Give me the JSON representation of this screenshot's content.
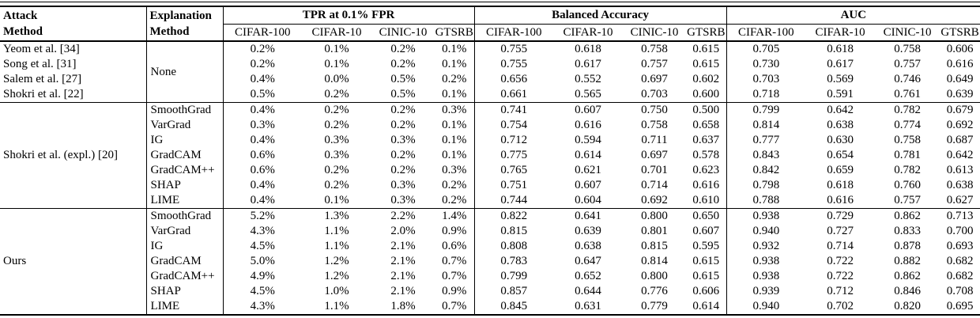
{
  "table": {
    "title_semantic": "Membership inference attack results table",
    "colors": {
      "text": "#000000",
      "rule": "#000000",
      "background": "#ffffff"
    },
    "header": {
      "attack": "Attack\nMethod",
      "explanation": "Explanation\nMethod",
      "groups": [
        "TPR at 0.1% FPR",
        "Balanced Accuracy",
        "AUC"
      ],
      "datasets": [
        "CIFAR-100",
        "CIFAR-10",
        "CINIC-10",
        "GTSRB"
      ]
    },
    "sections": [
      {
        "explanation_span": "None",
        "rows": [
          {
            "attack": "Yeom et al. [34]",
            "tpr": [
              "0.2%",
              "0.1%",
              "0.2%",
              "0.1%"
            ],
            "ba": [
              "0.755",
              "0.618",
              "0.758",
              "0.615"
            ],
            "auc": [
              "0.705",
              "0.618",
              "0.758",
              "0.606"
            ]
          },
          {
            "attack": "Song et al. [31]",
            "tpr": [
              "0.2%",
              "0.1%",
              "0.2%",
              "0.1%"
            ],
            "ba": [
              "0.755",
              "0.617",
              "0.757",
              "0.615"
            ],
            "auc": [
              "0.730",
              "0.617",
              "0.757",
              "0.616"
            ]
          },
          {
            "attack": "Salem et al. [27]",
            "tpr": [
              "0.4%",
              "0.0%",
              "0.5%",
              "0.2%"
            ],
            "ba": [
              "0.656",
              "0.552",
              "0.697",
              "0.602"
            ],
            "auc": [
              "0.703",
              "0.569",
              "0.746",
              "0.649"
            ]
          },
          {
            "attack": "Shokri et al. [22]",
            "tpr": [
              "0.5%",
              "0.2%",
              "0.5%",
              "0.1%"
            ],
            "ba": [
              "0.661",
              "0.565",
              "0.703",
              "0.600"
            ],
            "auc": [
              "0.718",
              "0.591",
              "0.761",
              "0.639"
            ]
          }
        ]
      },
      {
        "attack_span": "Shokri et al. (expl.) [20]",
        "rows": [
          {
            "explanation": "SmoothGrad",
            "tpr": [
              "0.4%",
              "0.2%",
              "0.2%",
              "0.3%"
            ],
            "ba": [
              "0.741",
              "0.607",
              "0.750",
              "0.500"
            ],
            "auc": [
              "0.799",
              "0.642",
              "0.782",
              "0.679"
            ]
          },
          {
            "explanation": "VarGrad",
            "tpr": [
              "0.3%",
              "0.2%",
              "0.2%",
              "0.1%"
            ],
            "ba": [
              "0.754",
              "0.616",
              "0.758",
              "0.658"
            ],
            "auc": [
              "0.814",
              "0.638",
              "0.774",
              "0.692"
            ]
          },
          {
            "explanation": "IG",
            "tpr": [
              "0.4%",
              "0.3%",
              "0.3%",
              "0.1%"
            ],
            "ba": [
              "0.712",
              "0.594",
              "0.711",
              "0.637"
            ],
            "auc": [
              "0.777",
              "0.630",
              "0.758",
              "0.687"
            ]
          },
          {
            "explanation": "GradCAM",
            "tpr": [
              "0.6%",
              "0.3%",
              "0.2%",
              "0.1%"
            ],
            "ba": [
              "0.775",
              "0.614",
              "0.697",
              "0.578"
            ],
            "auc": [
              "0.843",
              "0.654",
              "0.781",
              "0.642"
            ]
          },
          {
            "explanation": "GradCAM++",
            "tpr": [
              "0.6%",
              "0.2%",
              "0.2%",
              "0.3%"
            ],
            "ba": [
              "0.765",
              "0.621",
              "0.701",
              "0.623"
            ],
            "auc": [
              "0.842",
              "0.659",
              "0.782",
              "0.613"
            ]
          },
          {
            "explanation": "SHAP",
            "tpr": [
              "0.4%",
              "0.2%",
              "0.3%",
              "0.2%"
            ],
            "ba": [
              "0.751",
              "0.607",
              "0.714",
              "0.616"
            ],
            "auc": [
              "0.798",
              "0.618",
              "0.760",
              "0.638"
            ]
          },
          {
            "explanation": "LIME",
            "tpr": [
              "0.4%",
              "0.1%",
              "0.3%",
              "0.2%"
            ],
            "ba": [
              "0.744",
              "0.604",
              "0.692",
              "0.610"
            ],
            "auc": [
              "0.788",
              "0.616",
              "0.757",
              "0.627"
            ]
          }
        ]
      },
      {
        "attack_span": "Ours",
        "rows": [
          {
            "explanation": "SmoothGrad",
            "tpr": [
              "5.2%",
              "1.3%",
              "2.2%",
              "1.4%"
            ],
            "ba": [
              "0.822",
              "0.641",
              "0.800",
              "0.650"
            ],
            "auc": [
              "0.938",
              "0.729",
              "0.862",
              "0.713"
            ]
          },
          {
            "explanation": "VarGrad",
            "tpr": [
              "4.3%",
              "1.1%",
              "2.0%",
              "0.9%"
            ],
            "ba": [
              "0.815",
              "0.639",
              "0.801",
              "0.607"
            ],
            "auc": [
              "0.940",
              "0.727",
              "0.833",
              "0.700"
            ]
          },
          {
            "explanation": "IG",
            "tpr": [
              "4.5%",
              "1.1%",
              "2.1%",
              "0.6%"
            ],
            "ba": [
              "0.808",
              "0.638",
              "0.815",
              "0.595"
            ],
            "auc": [
              "0.932",
              "0.714",
              "0.878",
              "0.693"
            ]
          },
          {
            "explanation": "GradCAM",
            "tpr": [
              "5.0%",
              "1.2%",
              "2.1%",
              "0.7%"
            ],
            "ba": [
              "0.783",
              "0.647",
              "0.814",
              "0.615"
            ],
            "auc": [
              "0.938",
              "0.722",
              "0.882",
              "0.682"
            ]
          },
          {
            "explanation": "GradCAM++",
            "tpr": [
              "4.9%",
              "1.2%",
              "2.1%",
              "0.7%"
            ],
            "ba": [
              "0.799",
              "0.652",
              "0.800",
              "0.615"
            ],
            "auc": [
              "0.938",
              "0.722",
              "0.862",
              "0.682"
            ]
          },
          {
            "explanation": "SHAP",
            "tpr": [
              "4.5%",
              "1.0%",
              "2.1%",
              "0.9%"
            ],
            "ba": [
              "0.857",
              "0.644",
              "0.776",
              "0.606"
            ],
            "auc": [
              "0.939",
              "0.712",
              "0.846",
              "0.708"
            ]
          },
          {
            "explanation": "LIME",
            "tpr": [
              "4.3%",
              "1.1%",
              "1.8%",
              "0.7%"
            ],
            "ba": [
              "0.845",
              "0.631",
              "0.779",
              "0.614"
            ],
            "auc": [
              "0.940",
              "0.702",
              "0.820",
              "0.695"
            ]
          }
        ]
      }
    ]
  }
}
